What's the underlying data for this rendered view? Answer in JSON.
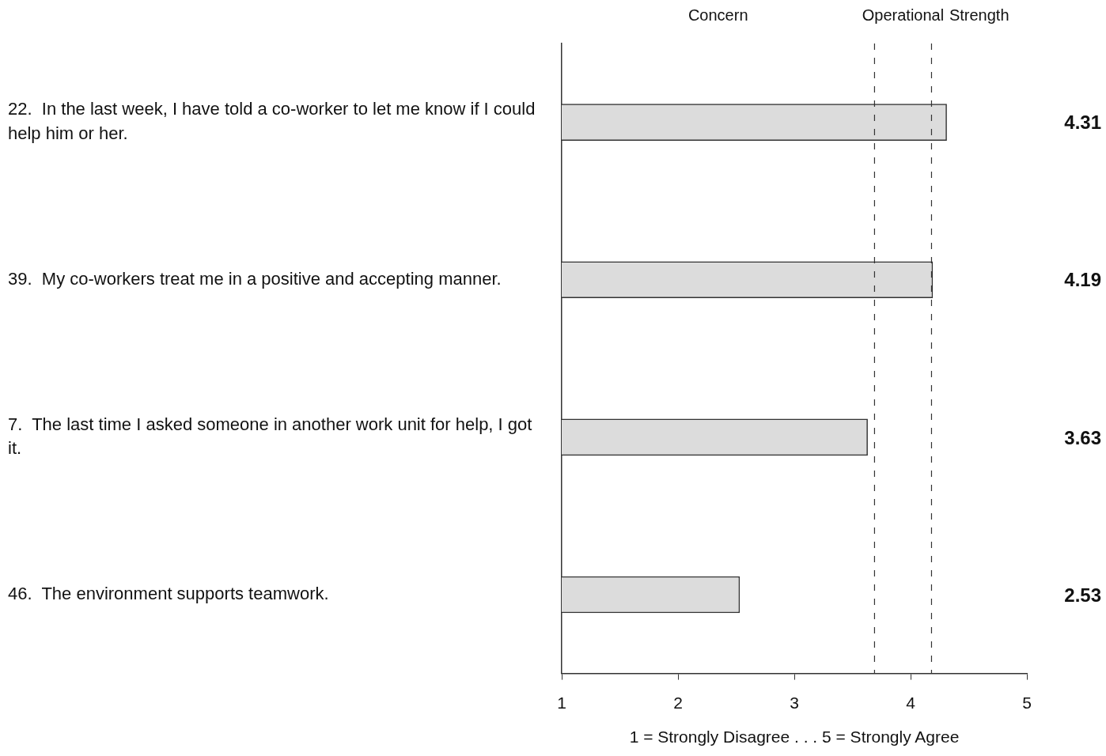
{
  "chart_data": {
    "type": "bar",
    "orientation": "horizontal",
    "xlabel": "1 = Strongly Disagree . . . 5 = Strongly Agree",
    "categories": [
      "22.  In the last week, I have told a co-worker to let me know if I could help him or her.",
      "39.  My co-workers treat me in a positive and accepting manner.",
      "7.  The last time I asked someone in another work unit for help, I got it.",
      "46.  The environment supports teamwork."
    ],
    "values": [
      4.31,
      4.19,
      3.63,
      2.53
    ],
    "color": "#dcdcdc",
    "data_labels": true,
    "xlim": [
      1,
      5
    ],
    "xticks": [
      1,
      2,
      3,
      4,
      5
    ],
    "grid": false,
    "legend": false,
    "ref_lines": [
      {
        "axis": "x",
        "value": 3.69,
        "line_style": "dashed",
        "color": "#333333"
      },
      {
        "axis": "x",
        "value": 4.18,
        "line_style": "dashed",
        "color": "#333333"
      }
    ],
    "annotations": [
      "Concern",
      "Operational",
      "Strength"
    ]
  }
}
